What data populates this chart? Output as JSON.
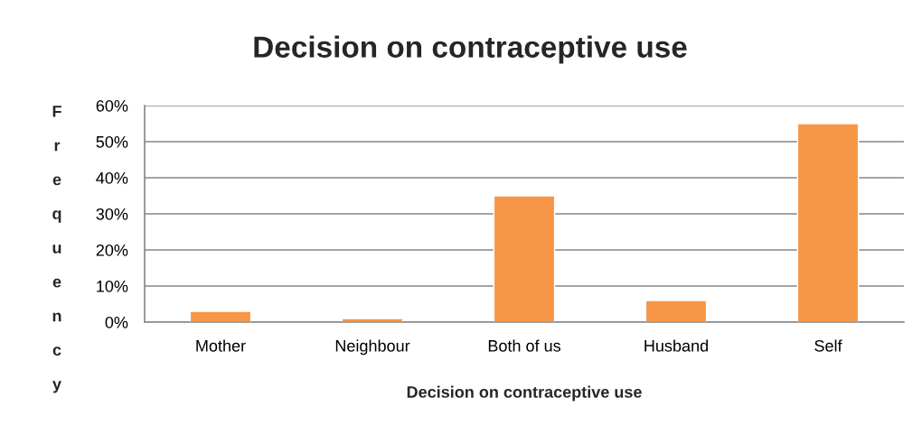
{
  "chart_data": {
    "type": "bar",
    "title": "Decision on contraceptive use",
    "xlabel": "Decision on contraceptive use",
    "ylabel": "Frequency",
    "categories": [
      "Mother",
      "Neighbour",
      "Both of us",
      "Husband",
      "Self"
    ],
    "values": [
      3,
      1,
      35,
      6,
      55
    ],
    "color": "#f79646",
    "ylim": [
      0,
      60
    ],
    "yticks": [
      {
        "value": 0,
        "label": "0%"
      },
      {
        "value": 10,
        "label": "10%"
      },
      {
        "value": 20,
        "label": "20%"
      },
      {
        "value": 30,
        "label": "30%"
      },
      {
        "value": 40,
        "label": "40%"
      },
      {
        "value": 50,
        "label": "50%"
      },
      {
        "value": 60,
        "label": "60%"
      }
    ],
    "grid": "y",
    "legend": false
  }
}
